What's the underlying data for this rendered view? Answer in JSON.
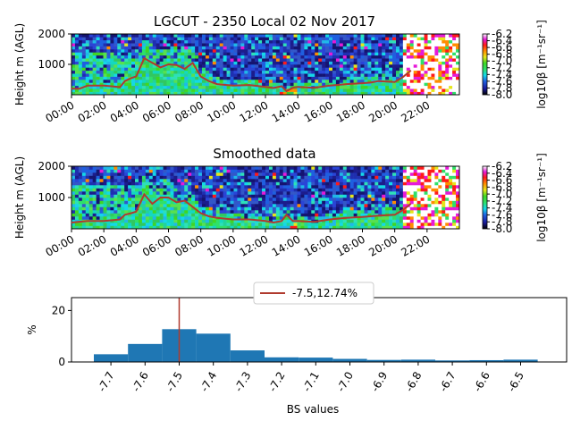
{
  "chart_data": [
    {
      "type": "heatmap",
      "title": "LGCUT - 2350 Local 02 Nov 2017",
      "ylabel": "Height m (AGL)",
      "x_ticks": [
        "00:00",
        "02:00",
        "04:00",
        "06:00",
        "08:00",
        "10:00",
        "12:00",
        "14:00",
        "16:00",
        "18:00",
        "20:00",
        "22:00"
      ],
      "y_ticks": [
        "1000",
        "2000"
      ],
      "ylim": [
        0,
        2000
      ],
      "colorbar": {
        "label": "log10β [m⁻¹sr⁻¹]",
        "ticks": [
          "-6.2",
          "-6.4",
          "-6.6",
          "-6.8",
          "-7.0",
          "-7.2",
          "-7.4",
          "-7.6",
          "-7.8",
          "-8.0"
        ],
        "range": [
          -8.0,
          -6.2
        ]
      },
      "line": {
        "color": "#b03a2e",
        "x_hours": [
          0,
          0.5,
          1,
          2,
          3,
          3.3,
          3.7,
          4,
          4.5,
          5,
          5.5,
          6,
          6.5,
          7,
          7.5,
          8,
          8.5,
          9,
          10,
          11,
          12,
          12.5,
          13,
          13.3,
          13.7,
          14,
          15,
          16,
          17,
          18,
          18.5,
          19,
          20,
          20.5,
          21
        ],
        "heights": [
          200,
          200,
          300,
          300,
          250,
          450,
          550,
          600,
          1200,
          1050,
          900,
          1000,
          980,
          850,
          1050,
          600,
          450,
          350,
          300,
          320,
          260,
          220,
          280,
          120,
          230,
          260,
          230,
          300,
          350,
          380,
          400,
          450,
          420,
          580,
          800
        ]
      }
    },
    {
      "type": "heatmap",
      "title": "Smoothed data",
      "ylabel": "Height m (AGL)",
      "x_ticks": [
        "00:00",
        "02:00",
        "04:00",
        "06:00",
        "08:00",
        "10:00",
        "12:00",
        "14:00",
        "16:00",
        "18:00",
        "20:00",
        "22:00"
      ],
      "y_ticks": [
        "1000",
        "2000"
      ],
      "ylim": [
        0,
        2000
      ],
      "colorbar": {
        "label": "log10β [m⁻¹sr⁻¹]",
        "ticks": [
          "-6.2",
          "-6.4",
          "-6.6",
          "-6.8",
          "-7.0",
          "-7.2",
          "-7.4",
          "-7.6",
          "-7.8",
          "-8.0"
        ],
        "range": [
          -8.0,
          -6.2
        ]
      },
      "line": {
        "color": "#b03a2e",
        "x_hours": [
          0,
          1,
          2,
          3,
          3.3,
          3.7,
          4,
          4.5,
          5,
          5.5,
          6,
          6.5,
          7,
          7.5,
          8,
          8.5,
          9,
          10,
          11,
          12,
          12.5,
          13,
          13.3,
          13.7,
          14,
          15,
          16,
          17,
          18,
          18.5,
          19,
          20,
          20.5,
          21
        ],
        "heights": [
          200,
          250,
          250,
          300,
          450,
          500,
          550,
          1100,
          800,
          1000,
          1000,
          850,
          900,
          700,
          500,
          400,
          350,
          300,
          300,
          250,
          200,
          250,
          450,
          250,
          250,
          220,
          300,
          350,
          380,
          400,
          420,
          450,
          600,
          800
        ]
      }
    },
    {
      "type": "bar",
      "xlabel": "BS values",
      "ylabel": "%",
      "categories": [
        "-7.7",
        "-7.6",
        "-7.5",
        "-7.4",
        "-7.3",
        "-7.2",
        "-7.1",
        "-7.0",
        "-6.9",
        "-6.8",
        "-6.7",
        "-6.6",
        "-6.5"
      ],
      "values": [
        3,
        7,
        12.74,
        11,
        4.5,
        1.8,
        1.7,
        1.2,
        0.8,
        0.9,
        0.6,
        0.7,
        0.9
      ],
      "ylim": [
        0,
        25
      ],
      "y_ticks": [
        "0",
        "20"
      ],
      "legend": "-7.5,12.74%",
      "marker_value": -7.5,
      "bar_color": "#1f77b4",
      "marker_color": "#b03a2e"
    }
  ]
}
